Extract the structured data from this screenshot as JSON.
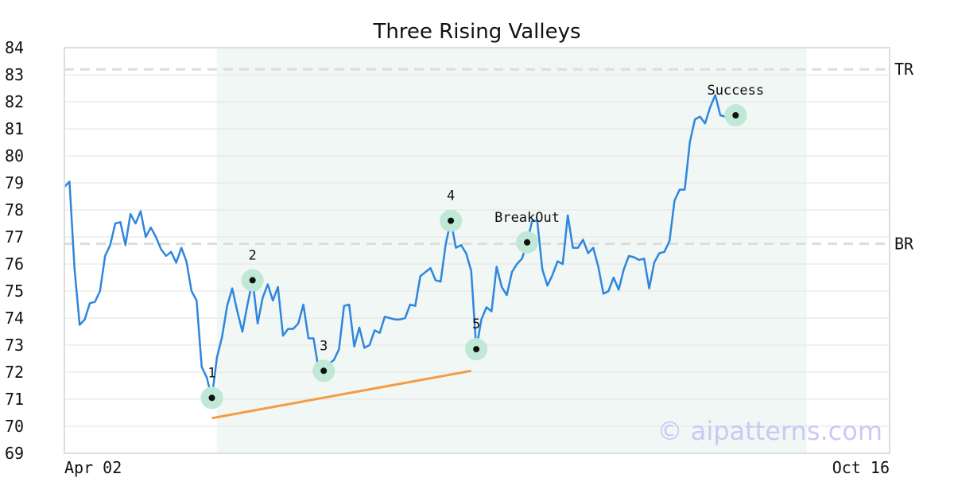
{
  "chart_data": {
    "type": "line",
    "title": "Three Rising Valleys",
    "ylim": [
      69,
      84
    ],
    "xlim": [
      0,
      154
    ],
    "y_ticks": [
      "69",
      "70",
      "71",
      "72",
      "73",
      "74",
      "75",
      "76",
      "77",
      "78",
      "79",
      "80",
      "81",
      "82",
      "83",
      "84"
    ],
    "x_tick_labels": [
      {
        "x": 0,
        "label": "Apr 02"
      },
      {
        "x": 154,
        "label": "Oct 16"
      }
    ],
    "grid": "horizontal",
    "line_color": "#2e86de",
    "series": [
      {
        "values": [
          78.85,
          79.05,
          75.8,
          73.75,
          73.95,
          74.55,
          74.6,
          75.0,
          76.3,
          76.7,
          77.5,
          77.55,
          76.7,
          77.85,
          77.5,
          77.95,
          77.0,
          77.35,
          77.0,
          76.55,
          76.3,
          76.45,
          76.05,
          76.6,
          76.1,
          75.0,
          74.65,
          72.2,
          71.8,
          71.05,
          72.55,
          73.3,
          74.45,
          75.1,
          74.25,
          73.5,
          74.5,
          75.4,
          73.8,
          74.75,
          75.25,
          74.65,
          75.15,
          73.35,
          73.6,
          73.6,
          73.8,
          74.5,
          73.25,
          73.25,
          72.1,
          72.05,
          72.3,
          72.45,
          72.85,
          74.45,
          74.5,
          72.95,
          73.65,
          72.9,
          73.0,
          73.55,
          73.45,
          74.05,
          74.0,
          73.95,
          73.95,
          74.0,
          74.5,
          74.45,
          75.55,
          75.7,
          75.85,
          75.4,
          75.35,
          76.75,
          77.6,
          76.6,
          76.7,
          76.4,
          75.75,
          72.85,
          73.95,
          74.4,
          74.25,
          75.9,
          75.15,
          74.85,
          75.7,
          76.0,
          76.2,
          76.8,
          77.6,
          77.6,
          75.8,
          75.2,
          75.6,
          76.1,
          76.0,
          77.8,
          76.6,
          76.6,
          76.9,
          76.4,
          76.6,
          75.9,
          74.9,
          75.0,
          75.5,
          75.05,
          75.8,
          76.3,
          76.25,
          76.15,
          76.2,
          75.1,
          76.05,
          76.4,
          76.45,
          76.85,
          78.35,
          78.75,
          78.75,
          80.5,
          81.35,
          81.45,
          81.2,
          81.8,
          82.25,
          81.5,
          81.45
        ]
      }
    ],
    "shaded_region": {
      "x0": 30,
      "x1": 146,
      "color": "#f0f7f4"
    },
    "levels": [
      {
        "name": "TR",
        "y": 83.2,
        "label": "TR"
      },
      {
        "name": "BR",
        "y": 76.75,
        "label": "BR"
      }
    ],
    "trendline": {
      "points": [
        [
          29,
          70.3
        ],
        [
          80,
          72.05
        ]
      ],
      "color": "#f59b42"
    },
    "markers": [
      {
        "label": "1",
        "x": 29,
        "y": 71.05
      },
      {
        "label": "2",
        "x": 37,
        "y": 75.4
      },
      {
        "label": "3",
        "x": 51,
        "y": 72.05
      },
      {
        "label": "4",
        "x": 76,
        "y": 77.6
      },
      {
        "label": "5",
        "x": 81,
        "y": 72.85
      },
      {
        "label": "BreakOut",
        "x": 91,
        "y": 76.8
      },
      {
        "label": "Success",
        "x": 132,
        "y": 81.5
      }
    ],
    "watermark": "© aipatterns.com"
  }
}
